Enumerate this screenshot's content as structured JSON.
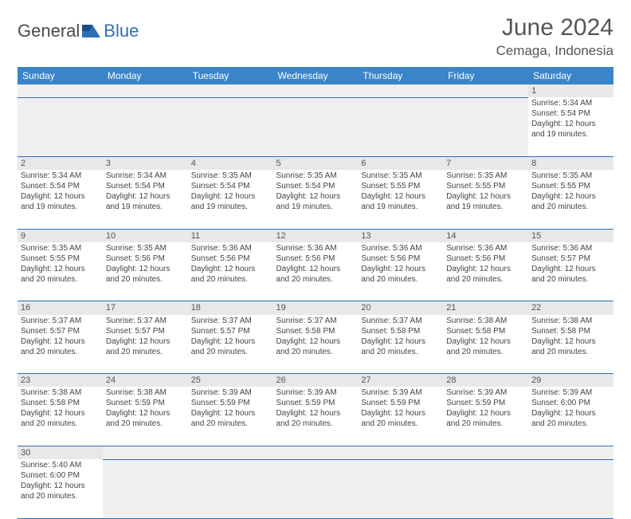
{
  "header": {
    "logo_text_a": "General",
    "logo_text_b": "Blue",
    "month_title": "June 2024",
    "location": "Cemaga, Indonesia"
  },
  "colors": {
    "header_bg": "#3a85c9",
    "header_text": "#ffffff",
    "daynum_bg": "#e8e8e8",
    "border": "#2d6fb5",
    "logo_blue": "#2d6fb5",
    "body_text": "#444"
  },
  "day_headers": [
    "Sunday",
    "Monday",
    "Tuesday",
    "Wednesday",
    "Thursday",
    "Friday",
    "Saturday"
  ],
  "weeks": [
    [
      null,
      null,
      null,
      null,
      null,
      null,
      {
        "n": "1",
        "sr": "Sunrise: 5:34 AM",
        "ss": "Sunset: 5:54 PM",
        "d1": "Daylight: 12 hours",
        "d2": "and 19 minutes."
      }
    ],
    [
      {
        "n": "2",
        "sr": "Sunrise: 5:34 AM",
        "ss": "Sunset: 5:54 PM",
        "d1": "Daylight: 12 hours",
        "d2": "and 19 minutes."
      },
      {
        "n": "3",
        "sr": "Sunrise: 5:34 AM",
        "ss": "Sunset: 5:54 PM",
        "d1": "Daylight: 12 hours",
        "d2": "and 19 minutes."
      },
      {
        "n": "4",
        "sr": "Sunrise: 5:35 AM",
        "ss": "Sunset: 5:54 PM",
        "d1": "Daylight: 12 hours",
        "d2": "and 19 minutes."
      },
      {
        "n": "5",
        "sr": "Sunrise: 5:35 AM",
        "ss": "Sunset: 5:54 PM",
        "d1": "Daylight: 12 hours",
        "d2": "and 19 minutes."
      },
      {
        "n": "6",
        "sr": "Sunrise: 5:35 AM",
        "ss": "Sunset: 5:55 PM",
        "d1": "Daylight: 12 hours",
        "d2": "and 19 minutes."
      },
      {
        "n": "7",
        "sr": "Sunrise: 5:35 AM",
        "ss": "Sunset: 5:55 PM",
        "d1": "Daylight: 12 hours",
        "d2": "and 19 minutes."
      },
      {
        "n": "8",
        "sr": "Sunrise: 5:35 AM",
        "ss": "Sunset: 5:55 PM",
        "d1": "Daylight: 12 hours",
        "d2": "and 20 minutes."
      }
    ],
    [
      {
        "n": "9",
        "sr": "Sunrise: 5:35 AM",
        "ss": "Sunset: 5:55 PM",
        "d1": "Daylight: 12 hours",
        "d2": "and 20 minutes."
      },
      {
        "n": "10",
        "sr": "Sunrise: 5:35 AM",
        "ss": "Sunset: 5:56 PM",
        "d1": "Daylight: 12 hours",
        "d2": "and 20 minutes."
      },
      {
        "n": "11",
        "sr": "Sunrise: 5:36 AM",
        "ss": "Sunset: 5:56 PM",
        "d1": "Daylight: 12 hours",
        "d2": "and 20 minutes."
      },
      {
        "n": "12",
        "sr": "Sunrise: 5:36 AM",
        "ss": "Sunset: 5:56 PM",
        "d1": "Daylight: 12 hours",
        "d2": "and 20 minutes."
      },
      {
        "n": "13",
        "sr": "Sunrise: 5:36 AM",
        "ss": "Sunset: 5:56 PM",
        "d1": "Daylight: 12 hours",
        "d2": "and 20 minutes."
      },
      {
        "n": "14",
        "sr": "Sunrise: 5:36 AM",
        "ss": "Sunset: 5:56 PM",
        "d1": "Daylight: 12 hours",
        "d2": "and 20 minutes."
      },
      {
        "n": "15",
        "sr": "Sunrise: 5:36 AM",
        "ss": "Sunset: 5:57 PM",
        "d1": "Daylight: 12 hours",
        "d2": "and 20 minutes."
      }
    ],
    [
      {
        "n": "16",
        "sr": "Sunrise: 5:37 AM",
        "ss": "Sunset: 5:57 PM",
        "d1": "Daylight: 12 hours",
        "d2": "and 20 minutes."
      },
      {
        "n": "17",
        "sr": "Sunrise: 5:37 AM",
        "ss": "Sunset: 5:57 PM",
        "d1": "Daylight: 12 hours",
        "d2": "and 20 minutes."
      },
      {
        "n": "18",
        "sr": "Sunrise: 5:37 AM",
        "ss": "Sunset: 5:57 PM",
        "d1": "Daylight: 12 hours",
        "d2": "and 20 minutes."
      },
      {
        "n": "19",
        "sr": "Sunrise: 5:37 AM",
        "ss": "Sunset: 5:58 PM",
        "d1": "Daylight: 12 hours",
        "d2": "and 20 minutes."
      },
      {
        "n": "20",
        "sr": "Sunrise: 5:37 AM",
        "ss": "Sunset: 5:58 PM",
        "d1": "Daylight: 12 hours",
        "d2": "and 20 minutes."
      },
      {
        "n": "21",
        "sr": "Sunrise: 5:38 AM",
        "ss": "Sunset: 5:58 PM",
        "d1": "Daylight: 12 hours",
        "d2": "and 20 minutes."
      },
      {
        "n": "22",
        "sr": "Sunrise: 5:38 AM",
        "ss": "Sunset: 5:58 PM",
        "d1": "Daylight: 12 hours",
        "d2": "and 20 minutes."
      }
    ],
    [
      {
        "n": "23",
        "sr": "Sunrise: 5:38 AM",
        "ss": "Sunset: 5:58 PM",
        "d1": "Daylight: 12 hours",
        "d2": "and 20 minutes."
      },
      {
        "n": "24",
        "sr": "Sunrise: 5:38 AM",
        "ss": "Sunset: 5:59 PM",
        "d1": "Daylight: 12 hours",
        "d2": "and 20 minutes."
      },
      {
        "n": "25",
        "sr": "Sunrise: 5:39 AM",
        "ss": "Sunset: 5:59 PM",
        "d1": "Daylight: 12 hours",
        "d2": "and 20 minutes."
      },
      {
        "n": "26",
        "sr": "Sunrise: 5:39 AM",
        "ss": "Sunset: 5:59 PM",
        "d1": "Daylight: 12 hours",
        "d2": "and 20 minutes."
      },
      {
        "n": "27",
        "sr": "Sunrise: 5:39 AM",
        "ss": "Sunset: 5:59 PM",
        "d1": "Daylight: 12 hours",
        "d2": "and 20 minutes."
      },
      {
        "n": "28",
        "sr": "Sunrise: 5:39 AM",
        "ss": "Sunset: 5:59 PM",
        "d1": "Daylight: 12 hours",
        "d2": "and 20 minutes."
      },
      {
        "n": "29",
        "sr": "Sunrise: 5:39 AM",
        "ss": "Sunset: 6:00 PM",
        "d1": "Daylight: 12 hours",
        "d2": "and 20 minutes."
      }
    ],
    [
      {
        "n": "30",
        "sr": "Sunrise: 5:40 AM",
        "ss": "Sunset: 6:00 PM",
        "d1": "Daylight: 12 hours",
        "d2": "and 20 minutes."
      },
      null,
      null,
      null,
      null,
      null,
      null
    ]
  ]
}
